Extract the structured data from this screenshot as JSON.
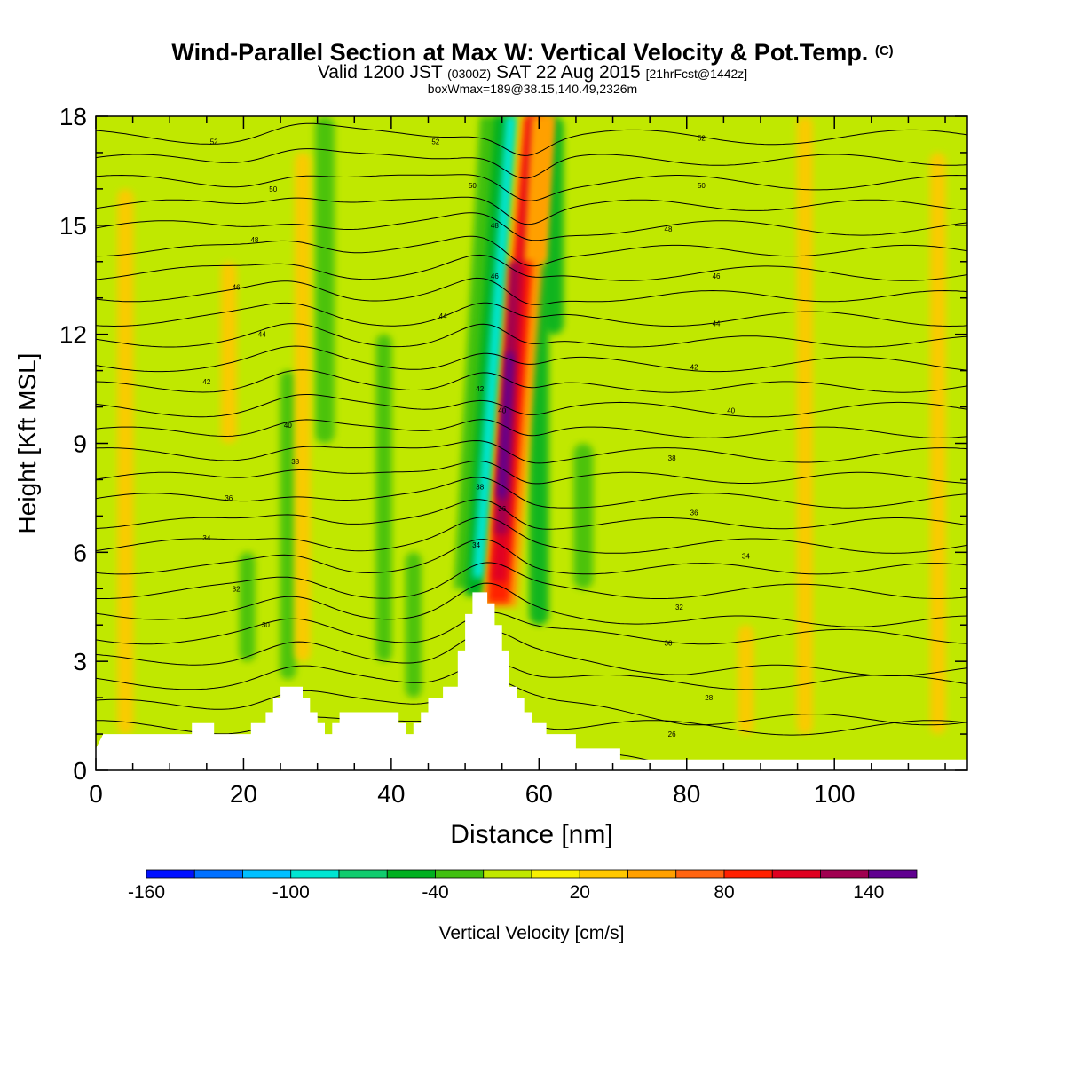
{
  "header": {
    "title": "Wind-Parallel Section at Max W: Vertical Velocity & Pot.Temp.",
    "copyright": "(C)",
    "valid_prefix": "Valid 1200 JST",
    "valid_utc": "(0300Z)",
    "valid_date": "SAT 22 Aug 2015",
    "forecast": "[21hrFcst@1442z]",
    "subtitle": "boxWmax=189@38.15,140.49,2326m"
  },
  "chart_data": {
    "type": "heatmap",
    "xlabel": "Distance [nm]",
    "ylabel": "Height [Kft MSL]",
    "xlim": [
      0,
      118
    ],
    "ylim": [
      0,
      18
    ],
    "x_ticks": [
      "0",
      "20",
      "40",
      "60",
      "80",
      "100"
    ],
    "x_tick_values": [
      0,
      20,
      40,
      60,
      80,
      100
    ],
    "y_ticks": [
      "0",
      "3",
      "6",
      "9",
      "12",
      "15",
      "18"
    ],
    "y_tick_values": [
      0,
      3,
      6,
      9,
      12,
      15,
      18
    ],
    "terrain": [
      [
        0,
        0.6
      ],
      [
        1,
        1.0
      ],
      [
        13,
        1.0
      ],
      [
        13,
        1.3
      ],
      [
        16,
        1.3
      ],
      [
        16,
        1.0
      ],
      [
        21,
        1.0
      ],
      [
        21,
        1.3
      ],
      [
        23,
        1.3
      ],
      [
        23,
        1.6
      ],
      [
        24,
        1.6
      ],
      [
        24,
        2.0
      ],
      [
        25,
        2.0
      ],
      [
        25,
        2.3
      ],
      [
        28,
        2.3
      ],
      [
        28,
        2.0
      ],
      [
        29,
        2.0
      ],
      [
        29,
        1.6
      ],
      [
        30,
        1.6
      ],
      [
        30,
        1.3
      ],
      [
        31,
        1.3
      ],
      [
        31,
        1.0
      ],
      [
        32,
        1.0
      ],
      [
        32,
        1.3
      ],
      [
        33,
        1.3
      ],
      [
        33,
        1.6
      ],
      [
        41,
        1.6
      ],
      [
        41,
        1.3
      ],
      [
        42,
        1.3
      ],
      [
        42,
        1.0
      ],
      [
        43,
        1.0
      ],
      [
        43,
        1.3
      ],
      [
        44,
        1.3
      ],
      [
        44,
        1.6
      ],
      [
        45,
        1.6
      ],
      [
        45,
        2.0
      ],
      [
        47,
        2.0
      ],
      [
        47,
        2.3
      ],
      [
        49,
        2.3
      ],
      [
        49,
        3.3
      ],
      [
        50,
        3.3
      ],
      [
        50,
        4.3
      ],
      [
        51,
        4.3
      ],
      [
        51,
        4.9
      ],
      [
        53,
        4.9
      ],
      [
        53,
        4.6
      ],
      [
        54,
        4.6
      ],
      [
        54,
        4.0
      ],
      [
        55,
        4.0
      ],
      [
        55,
        3.3
      ],
      [
        56,
        3.3
      ],
      [
        56,
        2.3
      ],
      [
        57,
        2.3
      ],
      [
        57,
        2.0
      ],
      [
        58,
        2.0
      ],
      [
        58,
        1.6
      ],
      [
        59,
        1.6
      ],
      [
        59,
        1.3
      ],
      [
        61,
        1.3
      ],
      [
        61,
        1.0
      ],
      [
        65,
        1.0
      ],
      [
        65,
        0.6
      ],
      [
        71,
        0.6
      ],
      [
        71,
        0.3
      ],
      [
        118,
        0.3
      ]
    ],
    "contour_levels": [
      26,
      28,
      30,
      32,
      34,
      36,
      38,
      40,
      42,
      44,
      46,
      48,
      50,
      52
    ],
    "contour_labels": [
      {
        "text": "52",
        "x": 16,
        "y": 17.3
      },
      {
        "text": "52",
        "x": 46,
        "y": 17.3
      },
      {
        "text": "52",
        "x": 82,
        "y": 17.4
      },
      {
        "text": "50",
        "x": 24,
        "y": 16.0
      },
      {
        "text": "50",
        "x": 51,
        "y": 16.1
      },
      {
        "text": "50",
        "x": 82,
        "y": 16.1
      },
      {
        "text": "48",
        "x": 21.5,
        "y": 14.6
      },
      {
        "text": "48",
        "x": 54,
        "y": 15.0
      },
      {
        "text": "48",
        "x": 77.5,
        "y": 14.9
      },
      {
        "text": "46",
        "x": 19,
        "y": 13.3
      },
      {
        "text": "46",
        "x": 54,
        "y": 13.6
      },
      {
        "text": "46",
        "x": 84,
        "y": 13.6
      },
      {
        "text": "44",
        "x": 22.5,
        "y": 12.0
      },
      {
        "text": "44",
        "x": 47,
        "y": 12.5
      },
      {
        "text": "44",
        "x": 84,
        "y": 12.3
      },
      {
        "text": "42",
        "x": 15,
        "y": 10.7
      },
      {
        "text": "42",
        "x": 52,
        "y": 10.5
      },
      {
        "text": "42",
        "x": 81,
        "y": 11.1
      },
      {
        "text": "40",
        "x": 26,
        "y": 9.5
      },
      {
        "text": "40",
        "x": 55,
        "y": 9.9
      },
      {
        "text": "40",
        "x": 86,
        "y": 9.9
      },
      {
        "text": "38",
        "x": 27,
        "y": 8.5
      },
      {
        "text": "38",
        "x": 52,
        "y": 7.8
      },
      {
        "text": "38",
        "x": 78,
        "y": 8.6
      },
      {
        "text": "36",
        "x": 18,
        "y": 7.5
      },
      {
        "text": "36",
        "x": 55,
        "y": 7.2
      },
      {
        "text": "36",
        "x": 81,
        "y": 7.1
      },
      {
        "text": "34",
        "x": 15,
        "y": 6.4
      },
      {
        "text": "34",
        "x": 51.5,
        "y": 6.2
      },
      {
        "text": "34",
        "x": 88,
        "y": 5.9
      },
      {
        "text": "32",
        "x": 19,
        "y": 5.0
      },
      {
        "text": "32",
        "x": 79,
        "y": 4.5
      },
      {
        "text": "30",
        "x": 23,
        "y": 4.0
      },
      {
        "text": "30",
        "x": 77.5,
        "y": 3.5
      },
      {
        "text": "28",
        "x": 83,
        "y": 2.0
      },
      {
        "text": "26",
        "x": 78,
        "y": 1.0
      }
    ],
    "colorbar": {
      "label": "Vertical Velocity [cm/s]",
      "tick_labels": [
        "-160",
        "-100",
        "-40",
        "20",
        "80",
        "140"
      ],
      "tick_values": [
        -160,
        -100,
        -40,
        20,
        80,
        140
      ],
      "bins": [
        -160,
        -140,
        -120,
        -100,
        -80,
        -60,
        -40,
        -20,
        0,
        20,
        40,
        60,
        80,
        100,
        120,
        140,
        160
      ],
      "colors": [
        "#0010ff",
        "#0070ff",
        "#00c0ff",
        "#00e6d2",
        "#10cc6e",
        "#00b020",
        "#40c010",
        "#c0e800",
        "#f8f000",
        "#ffc800",
        "#ffa000",
        "#ff6410",
        "#ff2000",
        "#e00020",
        "#a00050",
        "#600090"
      ]
    },
    "features": [
      {
        "x": 26,
        "y1": 2.5,
        "y2": 11,
        "w": -35
      },
      {
        "x": 31,
        "y1": 9,
        "y2": 18,
        "w": -40
      },
      {
        "x": 28,
        "y1": 3,
        "y2": 17,
        "w": 35
      },
      {
        "x": 39,
        "y1": 3,
        "y2": 12,
        "w": -30
      },
      {
        "x": 43,
        "y1": 2,
        "y2": 6,
        "w": -30
      },
      {
        "x": 60,
        "y1": 4,
        "y2": 14,
        "w": -45
      },
      {
        "x": 62,
        "y1": 12,
        "y2": 18,
        "w": -45
      },
      {
        "x": 66,
        "y1": 5,
        "y2": 9,
        "w": -40
      },
      {
        "x": 20.5,
        "y1": 3,
        "y2": 6,
        "w": -30
      },
      {
        "x": 18,
        "y1": 9,
        "y2": 14,
        "w": 30
      },
      {
        "x": 4,
        "y1": 1,
        "y2": 16,
        "w": 22
      },
      {
        "x": 96,
        "y1": 1,
        "y2": 18,
        "w": 22
      },
      {
        "x": 114,
        "y1": 1,
        "y2": 17,
        "w": 22
      },
      {
        "x": 88,
        "y1": 1,
        "y2": 4,
        "w": 25
      }
    ]
  }
}
